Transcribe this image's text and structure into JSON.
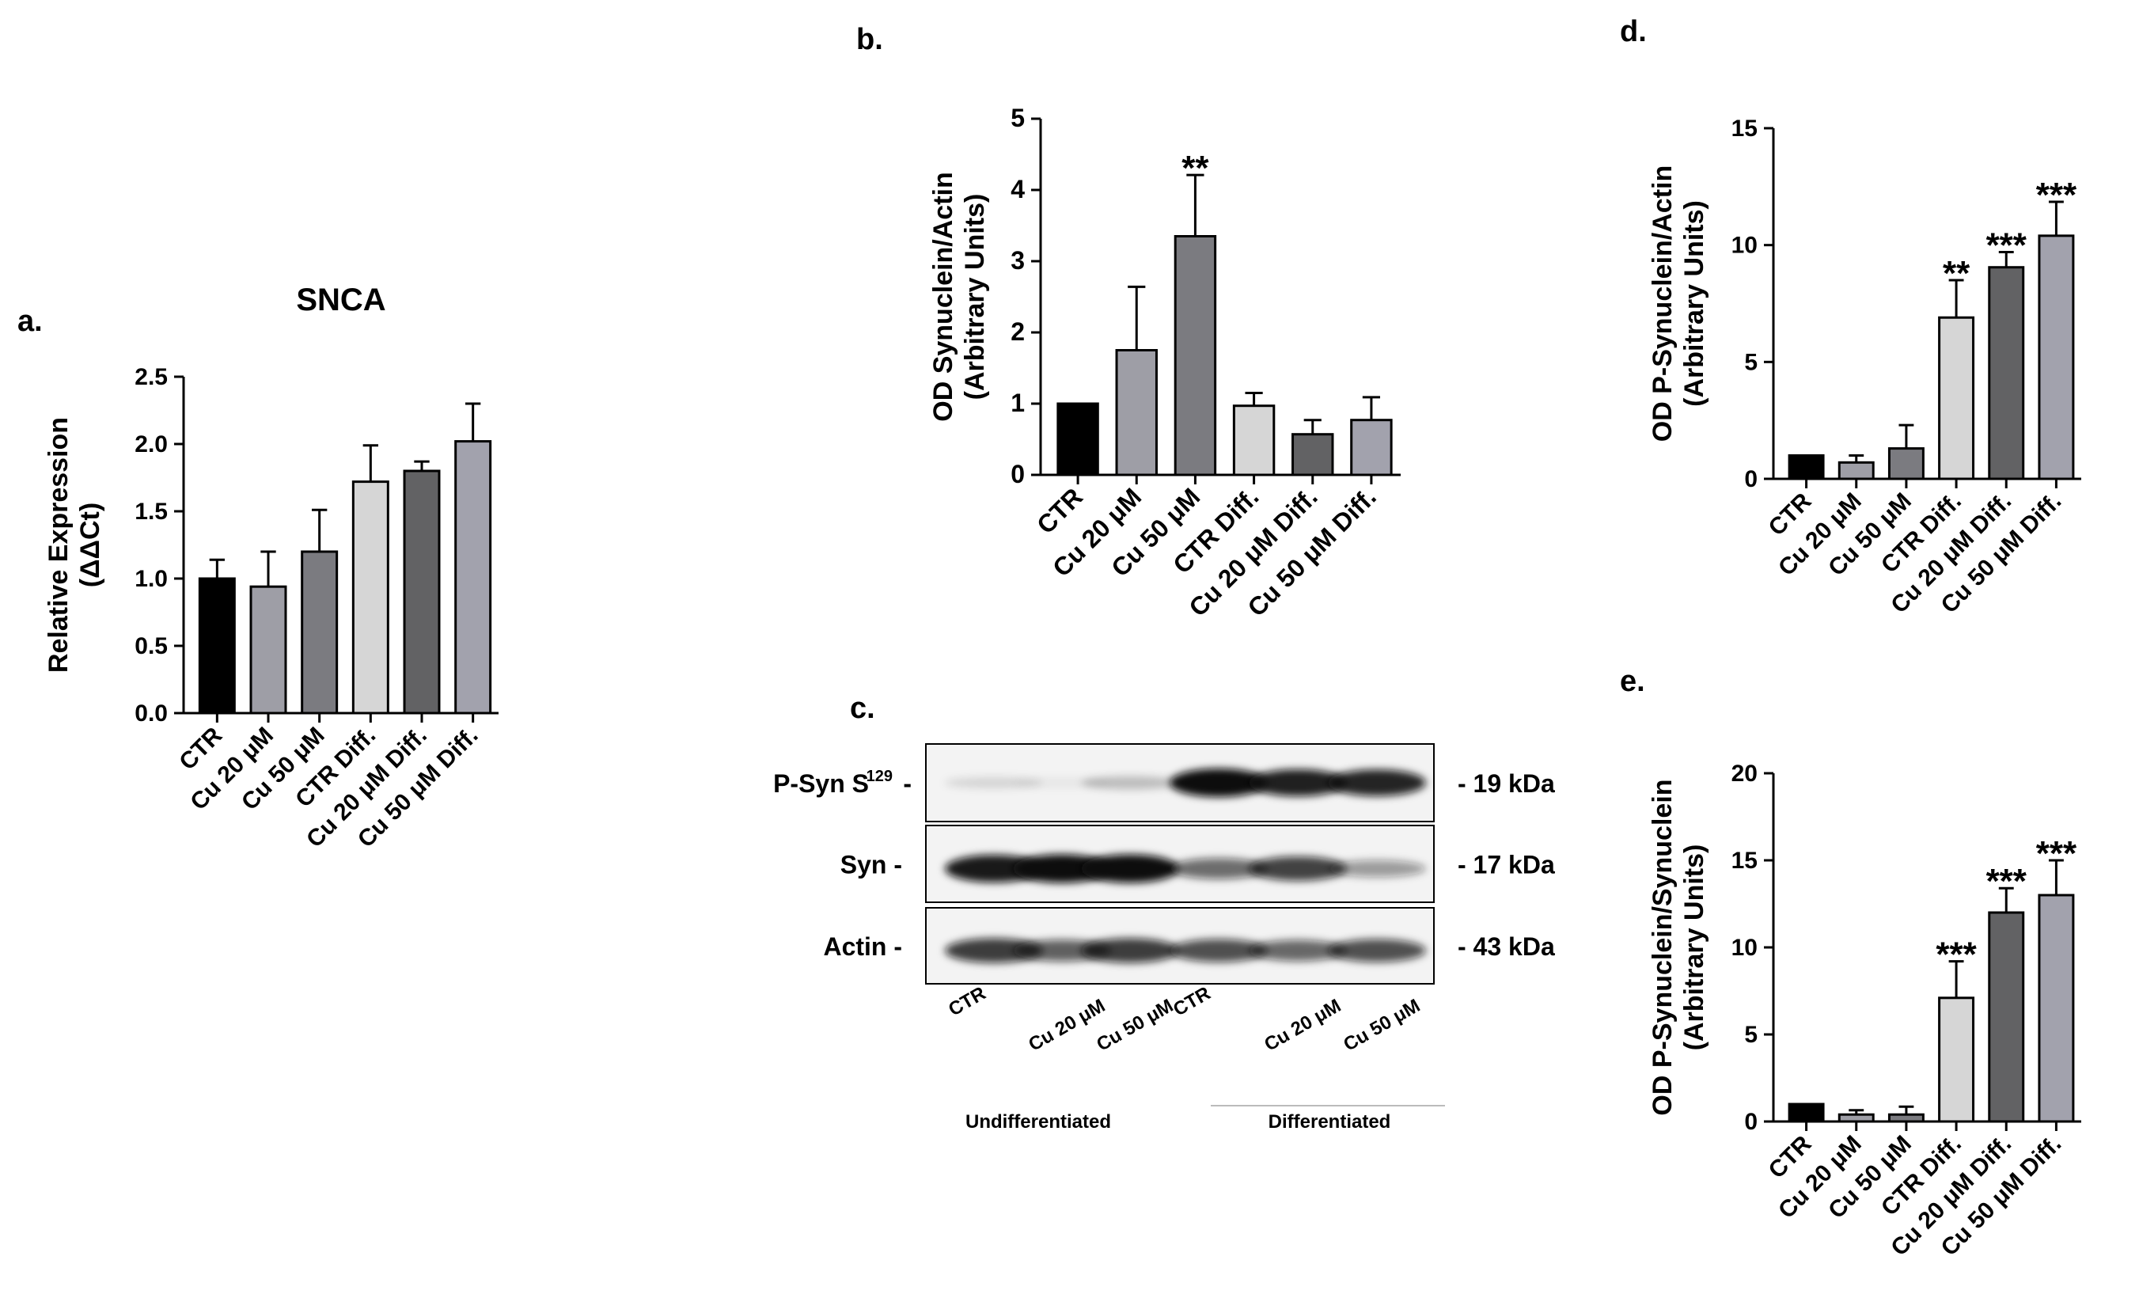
{
  "colors": {
    "CTR": "#000000",
    "Cu 20 μM": "#9e9ea6",
    "Cu 50 μM": "#7b7b80",
    "CTR Diff.": "#d6d6d6",
    "Cu 20 μM Diff.": "#626264",
    "Cu 50 μM Diff.": "#a2a2ad"
  },
  "panel_labels": {
    "a": "a.",
    "b": "b.",
    "c": "c.",
    "d": "d.",
    "e": "e."
  },
  "chart_data": [
    {
      "id": "a",
      "type": "bar",
      "title": "SNCA",
      "ylabel": "Relative  Expression",
      "ylabel2": "(ΔΔCt)",
      "categories": [
        "CTR",
        "Cu 20 μM",
        "Cu 50 μM",
        "CTR Diff.",
        "Cu 20 μM Diff.",
        "Cu 50 μM Diff."
      ],
      "values": [
        1.0,
        0.94,
        1.2,
        1.72,
        1.8,
        2.02
      ],
      "errors": [
        0.14,
        0.26,
        0.31,
        0.27,
        0.07,
        0.28
      ],
      "significance": [
        "",
        "",
        "",
        "",
        "",
        ""
      ],
      "ylim": [
        0,
        2.5
      ],
      "yticks": [
        "0.0",
        "0.5",
        "1.0",
        "1.5",
        "2.0",
        "2.5"
      ]
    },
    {
      "id": "b",
      "type": "bar",
      "title": "",
      "ylabel": "OD Synuclein/Actin",
      "ylabel2": "(Arbitrary Units)",
      "categories": [
        "CTR",
        "Cu 20 μM",
        "Cu 50 μM",
        "CTR Diff.",
        "Cu 20 μM Diff.",
        "Cu 50 μM Diff."
      ],
      "values": [
        1.0,
        1.75,
        3.35,
        0.97,
        0.57,
        0.77
      ],
      "errors": [
        0,
        0.89,
        0.86,
        0.18,
        0.2,
        0.32
      ],
      "significance": [
        "",
        "",
        "**",
        "",
        "",
        ""
      ],
      "ylim": [
        0,
        5
      ],
      "yticks": [
        "0",
        "1",
        "2",
        "3",
        "4",
        "5"
      ]
    },
    {
      "id": "d",
      "type": "bar",
      "title": "",
      "ylabel": "OD P-Synuclein/Actin",
      "ylabel2": "(Arbitrary Units)",
      "categories": [
        "CTR",
        "Cu 20 μM",
        "Cu 50 μM",
        "CTR Diff.",
        "Cu 20 μM Diff.",
        "Cu 50 μM Diff."
      ],
      "values": [
        1.0,
        0.7,
        1.3,
        6.9,
        9.05,
        10.4
      ],
      "errors": [
        0,
        0.3,
        1.0,
        1.6,
        0.65,
        1.45
      ],
      "significance": [
        "",
        "",
        "",
        "**",
        "***",
        "***"
      ],
      "ylim": [
        0,
        15
      ],
      "yticks": [
        "0",
        "5",
        "10",
        "15"
      ]
    },
    {
      "id": "e",
      "type": "bar",
      "title": "",
      "ylabel": "OD P-Synuclein/Synuclein",
      "ylabel2": "(Arbitrary Units)",
      "categories": [
        "CTR",
        "Cu 20 μM",
        "Cu 50 μM",
        "CTR Diff.",
        "Cu 20 μM Diff.",
        "Cu 50 μM Diff."
      ],
      "values": [
        1.0,
        0.4,
        0.4,
        7.1,
        12.0,
        13.0
      ],
      "errors": [
        0,
        0.25,
        0.45,
        2.1,
        1.4,
        2.0
      ],
      "significance": [
        "",
        "",
        "",
        "***",
        "***",
        "***"
      ],
      "ylim": [
        0,
        20
      ],
      "yticks": [
        "0",
        "5",
        "10",
        "15",
        "20"
      ]
    }
  ],
  "blot": {
    "rows": [
      {
        "label": "P-Syn S",
        "sup": "129",
        "size": "- 19 kDa",
        "intensity": [
          0.12,
          0.05,
          0.22,
          1.0,
          0.92,
          0.9
        ]
      },
      {
        "label": "Syn -",
        "sup": "",
        "size": "- 17 kDa",
        "intensity": [
          0.95,
          1.0,
          1.0,
          0.6,
          0.78,
          0.4
        ]
      },
      {
        "label": "Actin -",
        "sup": "",
        "size": "- 43 kDa",
        "intensity": [
          0.8,
          0.65,
          0.8,
          0.72,
          0.62,
          0.72
        ]
      }
    ],
    "lanes": [
      "CTR",
      "Cu 20 μM",
      "Cu 50 μM",
      "CTR",
      "Cu 20 μM",
      "Cu 50 μM"
    ],
    "groups": [
      "Undifferentiated",
      "Differentiated"
    ]
  }
}
